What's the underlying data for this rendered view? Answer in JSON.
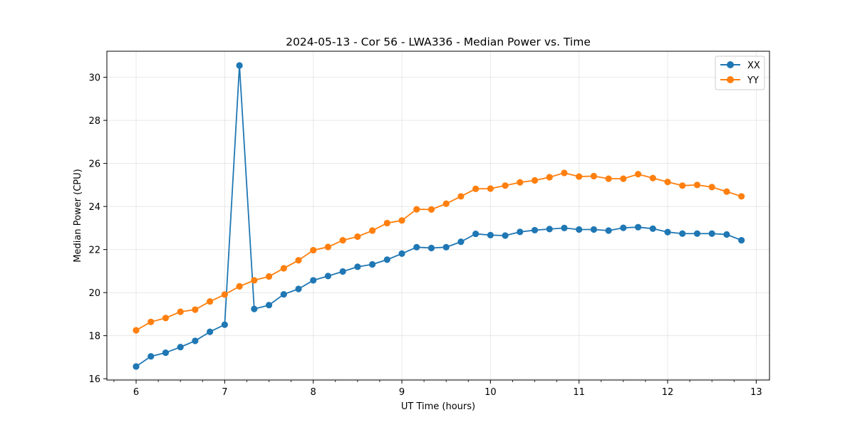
{
  "chart_data": {
    "type": "line",
    "title": "2024-05-13 - Cor 56 - LWA336 - Median Power vs. Time",
    "xlabel": "UT Time (hours)",
    "ylabel": "Median Power (CPU)",
    "xlim": [
      5.67,
      13.15
    ],
    "ylim": [
      15.94,
      31.21
    ],
    "xticks": [
      6,
      7,
      8,
      9,
      10,
      11,
      12,
      13
    ],
    "xtick_labels": [
      "6",
      "7",
      "8",
      "9",
      "10",
      "11",
      "12",
      "13"
    ],
    "yticks": [
      16,
      18,
      20,
      22,
      24,
      26,
      28,
      30
    ],
    "ytick_labels": [
      "16",
      "18",
      "20",
      "22",
      "24",
      "26",
      "28",
      "30"
    ],
    "x_minor_step": 0.25,
    "grid": true,
    "legend_position": "top-right",
    "x": [
      6.0,
      6.1667,
      6.3333,
      6.5,
      6.6667,
      6.8333,
      7.0,
      7.1667,
      7.3333,
      7.5,
      7.6667,
      7.8333,
      8.0,
      8.1667,
      8.3333,
      8.5,
      8.6667,
      8.8333,
      9.0,
      9.1667,
      9.3333,
      9.5,
      9.6667,
      9.8333,
      10.0,
      10.1667,
      10.3333,
      10.5,
      10.6667,
      10.8333,
      11.0,
      11.1667,
      11.3333,
      11.5,
      11.6667,
      11.8333,
      12.0,
      12.1667,
      12.3333,
      12.5,
      12.6667,
      12.8333
    ],
    "series": [
      {
        "name": "XX",
        "color": "#1f77b4",
        "values": [
          16.57,
          17.04,
          17.21,
          17.47,
          17.76,
          18.18,
          18.51,
          30.55,
          19.24,
          19.42,
          19.92,
          20.17,
          20.57,
          20.77,
          20.98,
          21.2,
          21.31,
          21.53,
          21.81,
          22.11,
          22.07,
          22.11,
          22.36,
          22.73,
          22.67,
          22.65,
          22.82,
          22.9,
          22.95,
          23.0,
          22.93,
          22.93,
          22.88,
          23.01,
          23.04,
          22.97,
          22.81,
          22.74,
          22.74,
          22.74,
          22.7,
          22.43
        ]
      },
      {
        "name": "YY",
        "color": "#ff7f0e",
        "values": [
          18.25,
          18.64,
          18.82,
          19.11,
          19.21,
          19.59,
          19.91,
          20.29,
          20.57,
          20.75,
          21.13,
          21.5,
          21.97,
          22.12,
          22.43,
          22.6,
          22.88,
          23.23,
          23.35,
          23.87,
          23.86,
          24.13,
          24.47,
          24.82,
          24.83,
          24.97,
          25.12,
          25.21,
          25.36,
          25.56,
          25.39,
          25.41,
          25.29,
          25.29,
          25.5,
          25.32,
          25.14,
          24.97,
          25.0,
          24.9,
          24.69,
          24.47
        ]
      }
    ]
  }
}
